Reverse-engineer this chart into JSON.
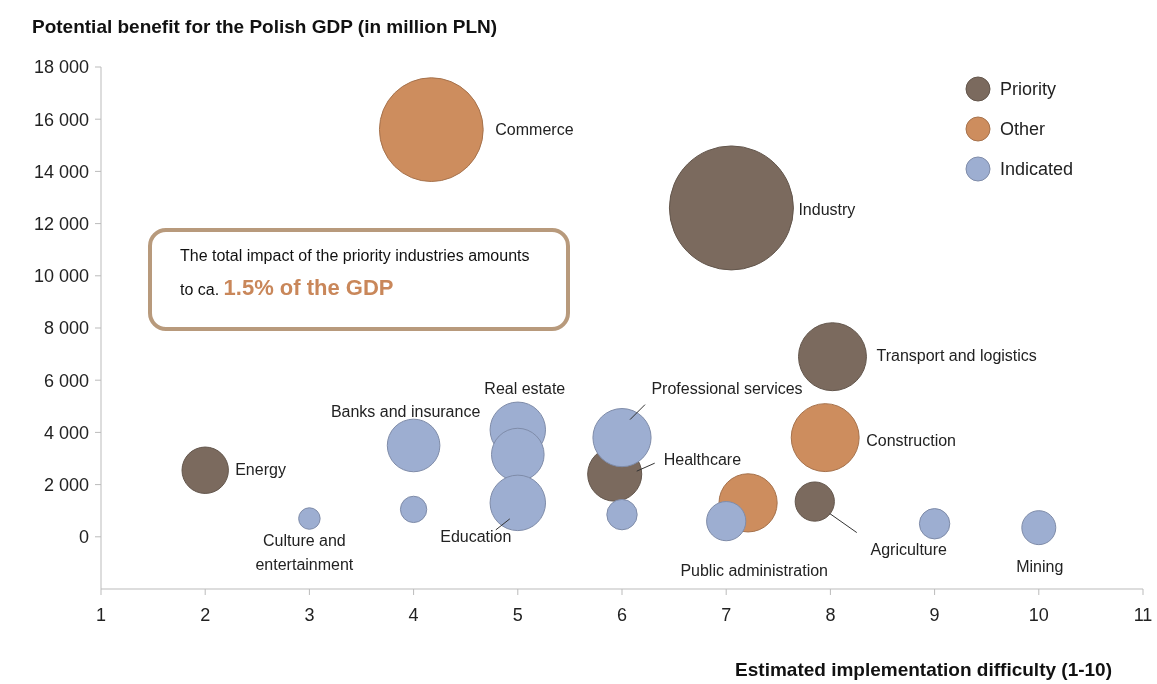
{
  "chart_data": {
    "type": "bubble",
    "ylabel": "Potential benefit for the Polish GDP (in million PLN)",
    "xlabel": "Estimated implementation difficulty (1-10)",
    "xlim": [
      1,
      11
    ],
    "xticks": [
      1,
      2,
      3,
      4,
      5,
      6,
      7,
      8,
      9,
      10,
      11
    ],
    "ylim": [
      -2000,
      18000
    ],
    "yticks": [
      {
        "value": 0,
        "label": "0"
      },
      {
        "value": 2000,
        "label": "2 000"
      },
      {
        "value": 4000,
        "label": "4 000"
      },
      {
        "value": 6000,
        "label": "6 000"
      },
      {
        "value": 8000,
        "label": "8 000"
      },
      {
        "value": 10000,
        "label": "10 000"
      },
      {
        "value": 12000,
        "label": "12 000"
      },
      {
        "value": 14000,
        "label": "14 000"
      },
      {
        "value": 16000,
        "label": "16 000"
      },
      {
        "value": 18000,
        "label": "18 000"
      }
    ],
    "grid": false,
    "legend": "top right",
    "series": [
      {
        "name": "Priority",
        "color": "#7b6a5e",
        "x": [
          7.05,
          8.02,
          2.0,
          5.93,
          7.85
        ],
        "values": [
          12600,
          6900,
          2550,
          2400,
          1350
        ],
        "sizes": [
          1,
          0.3,
          0.14,
          0.19,
          0.1
        ]
      },
      {
        "name": "Other",
        "color": "#cd8d5e",
        "x": [
          4.17,
          7.95,
          7.21
        ],
        "values": [
          15600,
          3800,
          1300
        ],
        "sizes": [
          0.7,
          0.3,
          0.22
        ]
      },
      {
        "name": "Indicated",
        "color": "#9daed1",
        "x": [
          4.0,
          5.0,
          5.0,
          5.0,
          6.0,
          6.0,
          7.0,
          9.0,
          10.0,
          3.0,
          4.0
        ],
        "values": [
          3500,
          4100,
          3150,
          1300,
          3800,
          850,
          600,
          500,
          350,
          700,
          1050
        ],
        "sizes": [
          0.18,
          0.2,
          0.18,
          0.2,
          0.22,
          0.06,
          0.1,
          0.06,
          0.075,
          0.03,
          0.045
        ]
      }
    ],
    "annotations": [
      "The total impact of the priority industries amounts to ca.",
      "1.5% of the GDP",
      "Commerce",
      "Industry",
      "Transport and logistics",
      "Construction",
      "Energy",
      "Banks and insurance",
      "Real estate",
      "Professional services",
      "Healthcare",
      "Education",
      "Public administration",
      "Agriculture",
      "Mining",
      "Culture and entertainment"
    ]
  }
}
